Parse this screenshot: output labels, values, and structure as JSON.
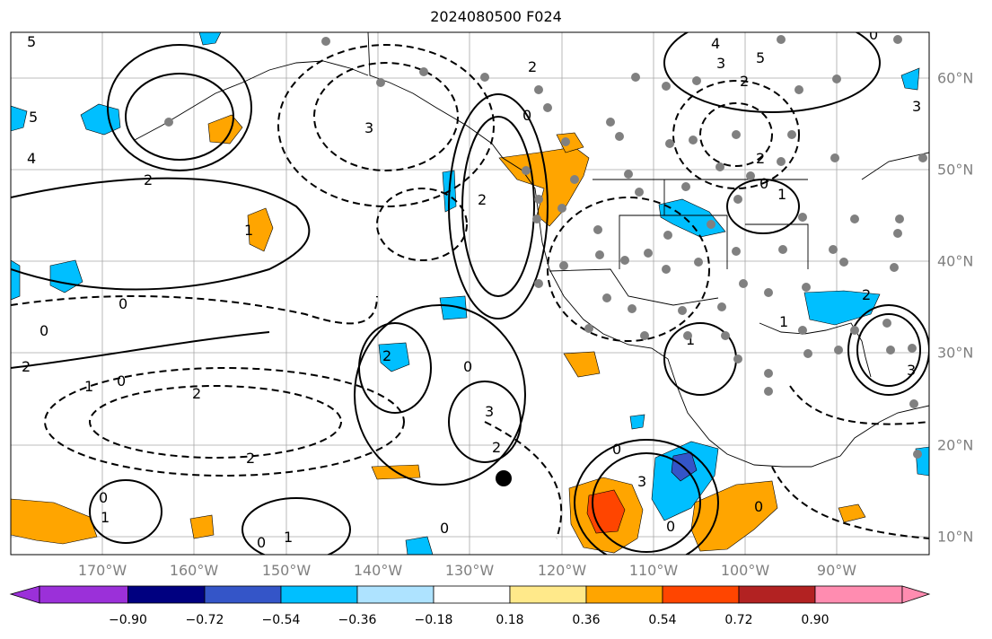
{
  "title": "2024080500 F024",
  "lon_axis": {
    "labels": [
      "170°W",
      "160°W",
      "150°W",
      "140°W",
      "130°W",
      "120°W",
      "110°W",
      "100°W",
      "90°W"
    ],
    "values": [
      -170,
      -160,
      -150,
      -140,
      -130,
      -120,
      -110,
      -100,
      -90
    ],
    "range": [
      -180,
      -80
    ]
  },
  "lat_axis": {
    "labels": [
      "60°N",
      "50°N",
      "40°N",
      "30°N",
      "20°N",
      "10°N"
    ],
    "values": [
      60,
      50,
      40,
      30,
      20,
      10
    ],
    "range": [
      8,
      65
    ]
  },
  "colorbar": {
    "ticks": [
      "−0.90",
      "−0.72",
      "−0.54",
      "−0.36",
      "−0.18",
      "0.18",
      "0.36",
      "0.54",
      "0.72",
      "0.90"
    ],
    "colors": [
      "#9b30d9",
      "#000080",
      "#3455c8",
      "#00bfff",
      "#aee3ff",
      "#ffffff",
      "#ffe98a",
      "#ffa500",
      "#ff4500",
      "#b22222",
      "#ff8cb0"
    ],
    "extend": "both"
  },
  "contour_labels": [
    "5",
    "4",
    "3",
    "2",
    "1",
    "0",
    "-1",
    "-2",
    "-3"
  ],
  "station_color": "#808080",
  "positive_contour_style": "solid",
  "negative_contour_style": "dashed",
  "storm_marker": "black filled circle"
}
